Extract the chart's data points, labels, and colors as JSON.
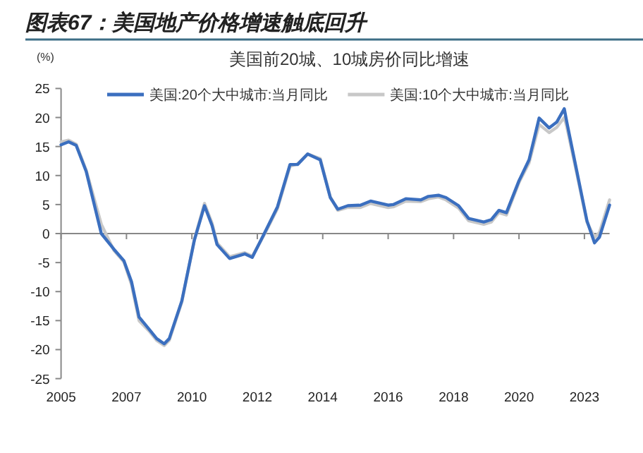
{
  "chart_data": {
    "type": "line",
    "title": "图表67：美国地产价格增速触底回升",
    "subtitle": "美国前20城、10城房价同比增速",
    "ylabel": "(%)",
    "legend": "top",
    "line_style": "solid",
    "xlim": [
      "2005-10",
      "2023-12"
    ],
    "xticks": [
      {
        "value": "2005-10",
        "label": "2005"
      },
      {
        "value": "2007-12",
        "label": "2007"
      },
      {
        "value": "2010-02",
        "label": "2010"
      },
      {
        "value": "2012-04",
        "label": "2012"
      },
      {
        "value": "2014-06",
        "label": "2014"
      },
      {
        "value": "2016-08",
        "label": "2016"
      },
      {
        "value": "2018-10",
        "label": "2018"
      },
      {
        "value": "2020-12",
        "label": "2020"
      },
      {
        "value": "2023-02",
        "label": "2023"
      }
    ],
    "ylim": [
      -25,
      25
    ],
    "yticks": [
      -25,
      -20,
      -15,
      -10,
      -5,
      0,
      5,
      10,
      15,
      20,
      25
    ],
    "x": [
      "2005-10",
      "2006-01",
      "2006-04",
      "2006-08",
      "2007-02",
      "2007-07",
      "2007-11",
      "2008-02",
      "2008-05",
      "2008-09",
      "2008-12",
      "2009-03",
      "2009-05",
      "2009-10",
      "2010-03",
      "2010-07",
      "2010-10",
      "2010-12",
      "2011-05",
      "2011-11",
      "2012-02",
      "2012-07",
      "2012-12",
      "2013-05",
      "2013-08",
      "2013-12",
      "2014-05",
      "2014-09",
      "2014-12",
      "2015-04",
      "2015-09",
      "2016-01",
      "2016-08",
      "2016-10",
      "2017-03",
      "2017-09",
      "2017-12",
      "2018-04",
      "2018-07",
      "2018-12",
      "2019-04",
      "2019-10",
      "2020-01",
      "2020-04",
      "2020-07",
      "2020-12",
      "2021-04",
      "2021-08",
      "2021-12",
      "2022-03",
      "2022-06",
      "2022-07",
      "2022-11",
      "2023-03",
      "2023-06",
      "2023-08",
      "2023-12"
    ],
    "series": [
      {
        "name": "美国:10个大中城市:当月同比",
        "color": "#c8c8c8",
        "values": [
          15.8,
          16.1,
          15.4,
          10.9,
          1.6,
          -2.9,
          -4.9,
          -8.8,
          -15.0,
          -16.8,
          -18.4,
          -19.3,
          -18.4,
          -11.8,
          -1.0,
          5.2,
          1.8,
          -1.6,
          -4.0,
          -3.3,
          -3.9,
          0.0,
          4.3,
          11.6,
          12.0,
          13.7,
          12.9,
          6.3,
          4.0,
          4.5,
          4.5,
          5.2,
          4.5,
          4.6,
          5.6,
          5.5,
          6.0,
          6.3,
          5.8,
          4.4,
          2.2,
          1.6,
          2.0,
          3.6,
          3.2,
          8.8,
          12.2,
          18.8,
          17.4,
          18.3,
          20.0,
          18.4,
          10.3,
          2.0,
          -0.7,
          0.2,
          5.8
        ]
      },
      {
        "name": "美国:20个大中城市:当月同比",
        "color": "#3b6fbf",
        "values": [
          15.3,
          15.8,
          15.2,
          10.7,
          0.0,
          -2.7,
          -4.7,
          -8.3,
          -14.4,
          -16.5,
          -18.1,
          -19.0,
          -18.1,
          -11.6,
          -1.1,
          4.8,
          1.4,
          -1.9,
          -4.3,
          -3.5,
          -4.1,
          0.2,
          4.6,
          11.9,
          11.9,
          13.7,
          12.7,
          6.2,
          4.2,
          4.8,
          4.9,
          5.6,
          4.9,
          5.0,
          6.0,
          5.8,
          6.4,
          6.6,
          6.2,
          4.8,
          2.6,
          2.0,
          2.4,
          4.0,
          3.6,
          9.1,
          12.7,
          19.9,
          18.2,
          19.2,
          21.5,
          19.2,
          10.7,
          2.2,
          -1.6,
          -0.6,
          4.9
        ]
      }
    ]
  }
}
